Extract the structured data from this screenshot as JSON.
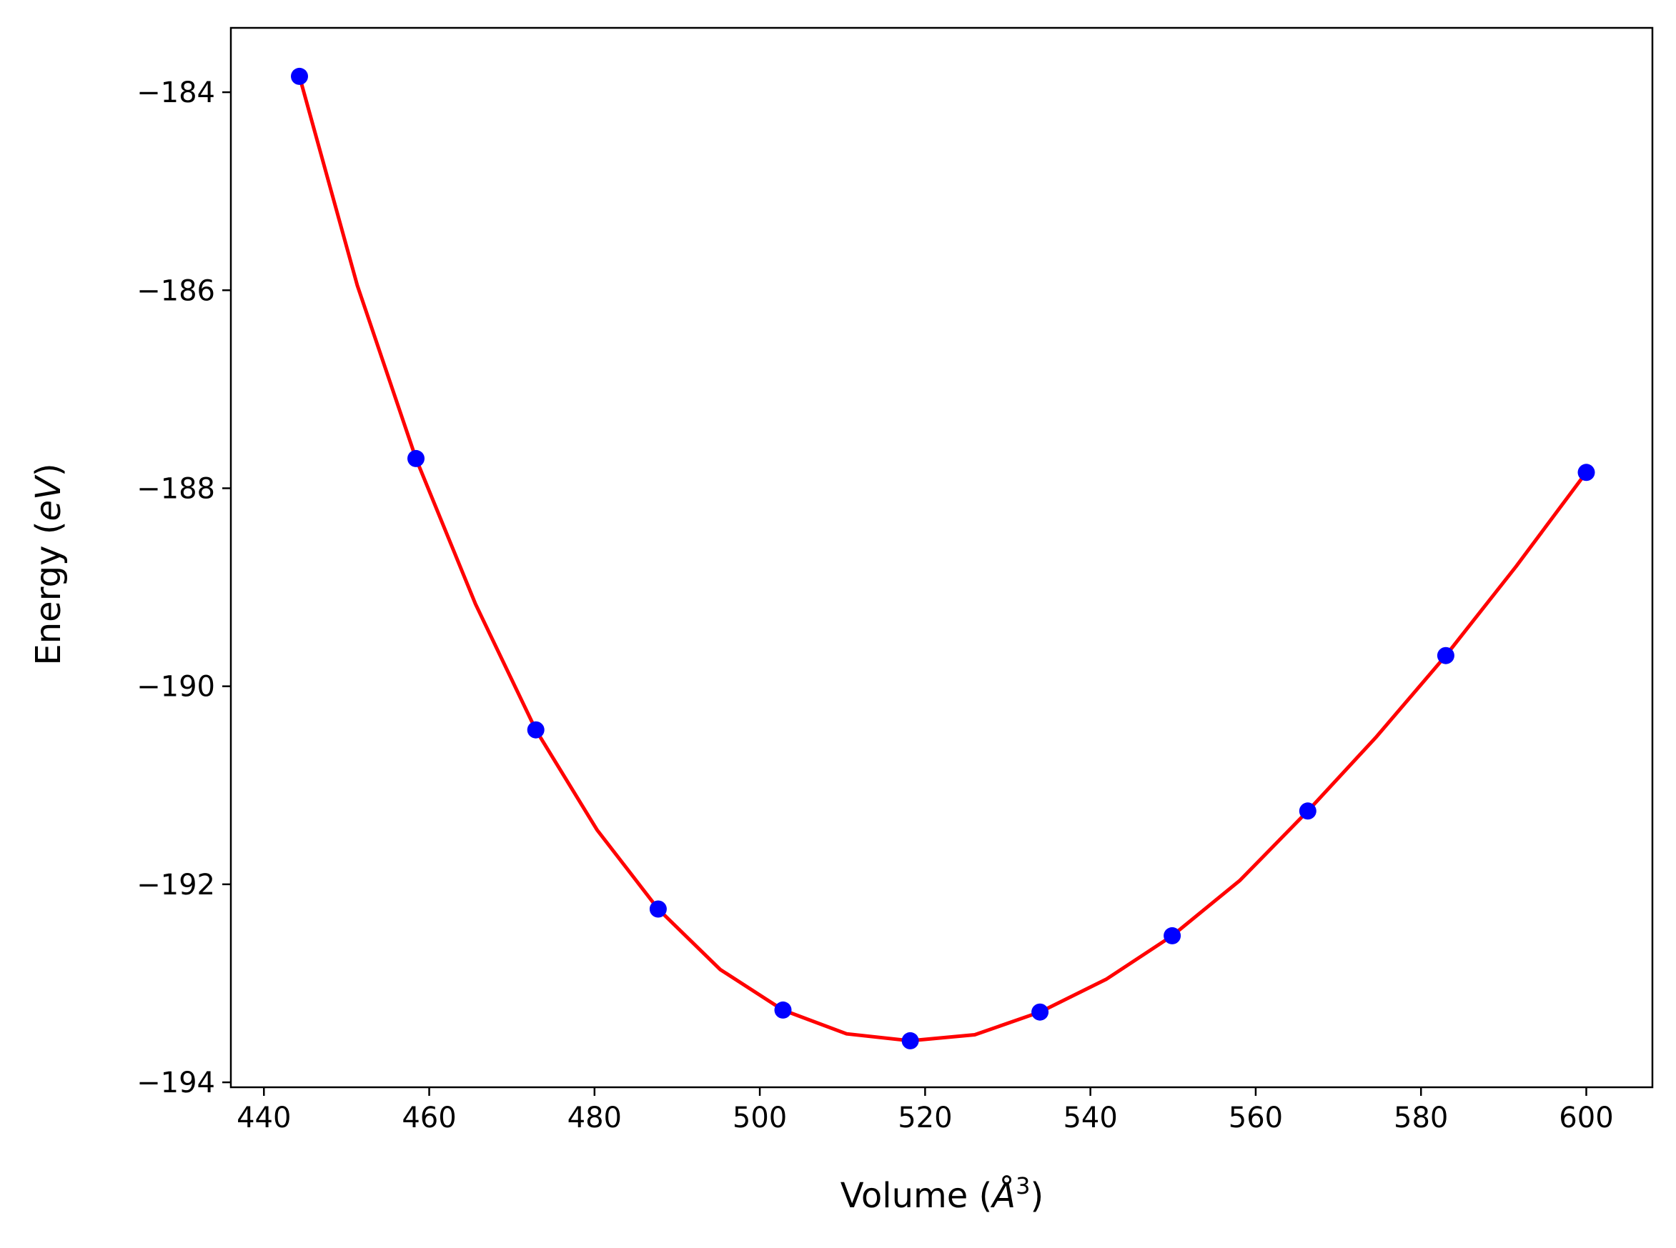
{
  "chart_data": {
    "type": "scatter",
    "title": "",
    "xlabel": "Volume (Å³)",
    "xlabel_parts": {
      "before": "Volume (",
      "symbol": "Å",
      "sup": "3",
      "after": ")"
    },
    "ylabel": "Energy (eV)",
    "ylabel_parts": {
      "before": "Energy (",
      "unit": "eV",
      "after": ")"
    },
    "xlim": [
      436,
      608
    ],
    "ylim": [
      -194.05,
      -183.35
    ],
    "xticks": [
      440,
      460,
      480,
      500,
      520,
      540,
      560,
      580,
      600
    ],
    "xtick_labels": [
      "440",
      "460",
      "480",
      "500",
      "520",
      "540",
      "560",
      "580",
      "600"
    ],
    "yticks": [
      -184,
      -186,
      -188,
      -190,
      -192,
      -194
    ],
    "ytick_labels": [
      "−184",
      "−186",
      "−188",
      "−190",
      "−192",
      "−194"
    ],
    "grid": false,
    "series": [
      {
        "style": "markers",
        "color": "#0000ff",
        "x": [
          444.3,
          458.4,
          472.9,
          487.7,
          502.8,
          518.2,
          533.9,
          549.9,
          566.3,
          583.0,
          600.0
        ],
        "y": [
          -183.84,
          -187.7,
          -190.44,
          -192.25,
          -193.27,
          -193.58,
          -193.29,
          -192.52,
          -191.26,
          -189.69,
          -187.84
        ]
      },
      {
        "style": "line",
        "color": "#ff0000",
        "x": [
          444.3,
          451.3,
          458.4,
          465.6,
          472.9,
          480.3,
          487.7,
          495.2,
          502.8,
          510.5,
          518.2,
          526.0,
          533.9,
          541.9,
          549.9,
          558.1,
          566.3,
          574.6,
          583.0,
          591.5,
          600.0
        ],
        "y": [
          -183.84,
          -185.95,
          -187.7,
          -189.17,
          -190.44,
          -191.45,
          -192.25,
          -192.86,
          -193.27,
          -193.51,
          -193.58,
          -193.52,
          -193.29,
          -192.96,
          -192.52,
          -191.96,
          -191.26,
          -190.51,
          -189.69,
          -188.79,
          -187.84
        ]
      }
    ]
  }
}
